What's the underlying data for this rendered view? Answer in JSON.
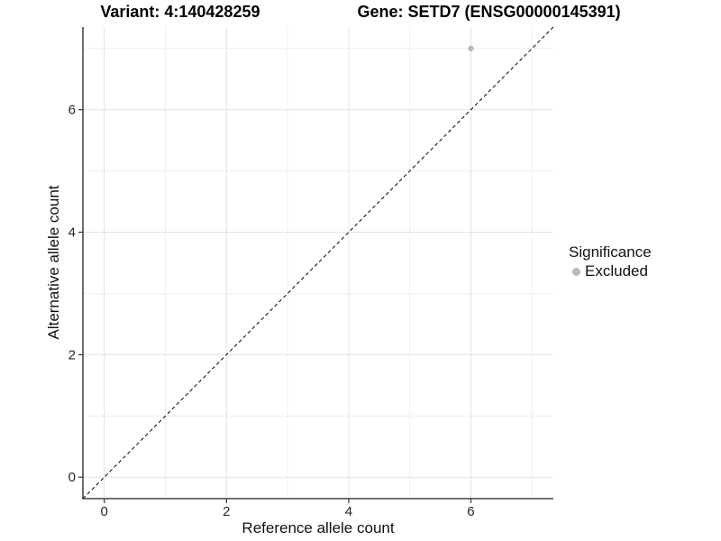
{
  "titles": {
    "variant": "Variant: 4:140428259",
    "gene": "Gene: SETD7 (ENSG00000145391)"
  },
  "chart_data": {
    "type": "scatter",
    "title_left": "Variant: 4:140428259",
    "title_right": "Gene: SETD7 (ENSG00000145391)",
    "xlabel": "Reference allele count",
    "ylabel": "Alternative allele count",
    "xlim": [
      -0.35,
      7.35
    ],
    "ylim": [
      -0.35,
      7.35
    ],
    "x_major_ticks": [
      0,
      2,
      4,
      6
    ],
    "x_minor_ticks": [
      1,
      3,
      5,
      7
    ],
    "y_major_ticks": [
      0,
      2,
      4,
      6
    ],
    "y_minor_ticks": [
      1,
      3,
      5,
      7
    ],
    "grid": true,
    "reference_line": {
      "type": "identity",
      "style": "dashed",
      "color": "#000000"
    },
    "series": [
      {
        "name": "Excluded",
        "color": "#b9b9b9",
        "points": [
          {
            "x": 6,
            "y": 7
          }
        ]
      }
    ],
    "legend": {
      "title": "Significance",
      "position": "right",
      "items": [
        {
          "label": "Excluded",
          "color": "#b9b9b9"
        }
      ]
    }
  },
  "colors": {
    "background": "#ffffff",
    "grid_major": "#e2e2e2",
    "grid_minor": "#efefef",
    "axis_line": "#1f1f1f",
    "tick_mark": "#333333",
    "point": "#b9b9b9"
  }
}
